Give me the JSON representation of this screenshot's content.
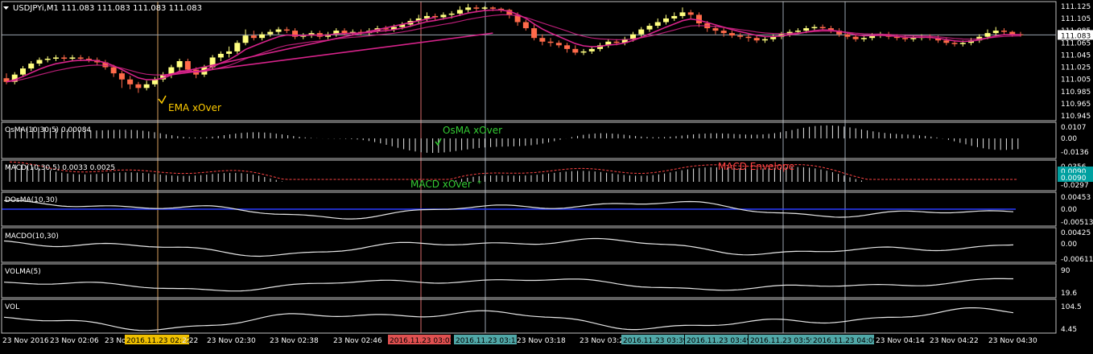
{
  "colors": {
    "background": "#000000",
    "frame": "#c0c0c0",
    "text": "#ffffff",
    "bull": "#ffff80",
    "bear": "#ff6a4a",
    "ema": "#d6238a",
    "xover_ema": "#ffcc00",
    "xover_osma": "#33cc33",
    "envelope": "#ff4444",
    "dosma_zero": "#2a3cff",
    "signal_box": "#00a0a0",
    "vline": "#9aa4b0",
    "vline_red": "#d86a6a",
    "vline_orange": "#d8a060",
    "tag_yellow": "#f0c000",
    "tag_red": "#e05050",
    "tag_teal": "#50a8a8"
  },
  "header": {
    "menu_icon": "triangle-down-icon",
    "title": "USDJPYi,M1  111.083 111.083 111.083 111.083"
  },
  "panels": {
    "price": {
      "ticks": [
        "111.125",
        "111.105",
        "111.085",
        "111.065",
        "111.045",
        "111.025",
        "111.005",
        "110.985",
        "110.965",
        "110.945"
      ],
      "current": "111.083",
      "annotation": "EMA xOver"
    },
    "osma": {
      "label": "OsMA(10,30,5) 0.00084",
      "ticks": [
        "0.0107",
        "0.00",
        "-0.0136"
      ],
      "annotation": "OsMA xOver"
    },
    "macd": {
      "label": "MACD(10,30,5) 0.0033 0.0025",
      "ticks": [
        "0.0356",
        "0.0090",
        "0.0090",
        "-0.0297"
      ],
      "annotation_envelope": "MACD Envelope",
      "annotation_xover": "MACD xOver"
    },
    "dosma": {
      "label": "DOsMA(10,30)",
      "ticks": [
        "0.00453",
        "0.00",
        "-0.00513"
      ]
    },
    "macdo": {
      "label": "MACDO(10,30)",
      "ticks": [
        "0.00425",
        "0.00",
        "-0.00611"
      ]
    },
    "volma": {
      "label": "VOLMA(5)",
      "ticks": [
        "90",
        "19.6"
      ]
    },
    "vol": {
      "label": "VOL",
      "ticks": [
        "104.5",
        "4.45"
      ]
    }
  },
  "time_axis": [
    "23 Nov 2016",
    "23 Nov 02:06",
    "23 Nov",
    "2016.11.23 02:22",
    "2:22",
    "23 Nov 02:30",
    "23 Nov 02:38",
    "23 Nov 02:46",
    "23 Nov 02:54",
    "2016.11.23 03:03",
    "2016.11.23 03:13",
    "23 Nov 03:18",
    "23 Nov 03:26",
    "2016.11.23 03:39",
    "2016.11.23 03:49",
    "2016.11.23 03:59",
    "2016.11.23 04:09",
    "23 Nov 04:14",
    "23 Nov 04:22",
    "23 Nov 04:30"
  ],
  "chart_data": {
    "type": "candlestick",
    "symbol": "USDJPYi",
    "timeframe": "M1",
    "ylim": [
      110.945,
      111.135
    ],
    "candles": [
      [
        111.012,
        111.006,
        111.02,
        111.002
      ],
      [
        111.006,
        111.018,
        111.022,
        111.002
      ],
      [
        111.018,
        111.028,
        111.032,
        111.014
      ],
      [
        111.028,
        111.036,
        111.04,
        111.024
      ],
      [
        111.036,
        111.042,
        111.046,
        111.032
      ],
      [
        111.042,
        111.044,
        111.048,
        111.038
      ],
      [
        111.044,
        111.046,
        111.05,
        111.04
      ],
      [
        111.046,
        111.044,
        111.05,
        111.04
      ],
      [
        111.044,
        111.046,
        111.05,
        111.04
      ],
      [
        111.046,
        111.044,
        111.05,
        111.04
      ],
      [
        111.044,
        111.042,
        111.048,
        111.038
      ],
      [
        111.042,
        111.038,
        111.046,
        111.034
      ],
      [
        111.038,
        111.03,
        111.042,
        111.026
      ],
      [
        111.03,
        111.02,
        111.034,
        111.014
      ],
      [
        111.02,
        111.01,
        111.024,
        110.996
      ],
      [
        111.01,
        111.002,
        111.016,
        110.994
      ],
      [
        111.002,
        110.996,
        111.006,
        110.988
      ],
      [
        110.996,
        111.002,
        111.008,
        110.992
      ],
      [
        111.002,
        111.01,
        111.014,
        110.998
      ],
      [
        111.01,
        111.018,
        111.022,
        111.006
      ],
      [
        111.018,
        111.03,
        111.034,
        111.012
      ],
      [
        111.03,
        111.04,
        111.044,
        111.024
      ],
      [
        111.04,
        111.026,
        111.044,
        111.022
      ],
      [
        111.026,
        111.018,
        111.03,
        111.012
      ],
      [
        111.018,
        111.03,
        111.034,
        111.014
      ],
      [
        111.03,
        111.046,
        111.05,
        111.026
      ],
      [
        111.046,
        111.052,
        111.056,
        111.04
      ],
      [
        111.052,
        111.056,
        111.064,
        111.046
      ],
      [
        111.056,
        111.07,
        111.074,
        111.052
      ],
      [
        111.07,
        111.082,
        111.092,
        111.066
      ],
      [
        111.082,
        111.078,
        111.09,
        111.074
      ],
      [
        111.078,
        111.084,
        111.088,
        111.074
      ],
      [
        111.084,
        111.088,
        111.092,
        111.08
      ],
      [
        111.088,
        111.092,
        111.096,
        111.084
      ],
      [
        111.092,
        111.09,
        111.096,
        111.086
      ],
      [
        111.09,
        111.08,
        111.094,
        111.076
      ],
      [
        111.08,
        111.082,
        111.086,
        111.076
      ],
      [
        111.082,
        111.086,
        111.09,
        111.078
      ],
      [
        111.086,
        111.08,
        111.09,
        111.076
      ],
      [
        111.08,
        111.084,
        111.088,
        111.076
      ],
      [
        111.084,
        111.09,
        111.094,
        111.08
      ],
      [
        111.09,
        111.086,
        111.094,
        111.082
      ],
      [
        111.086,
        111.088,
        111.092,
        111.082
      ],
      [
        111.088,
        111.086,
        111.092,
        111.082
      ],
      [
        111.086,
        111.09,
        111.094,
        111.082
      ],
      [
        111.09,
        111.094,
        111.098,
        111.086
      ],
      [
        111.094,
        111.092,
        111.098,
        111.088
      ],
      [
        111.092,
        111.096,
        111.1,
        111.088
      ],
      [
        111.096,
        111.1,
        111.104,
        111.092
      ],
      [
        111.1,
        111.106,
        111.11,
        111.096
      ],
      [
        111.106,
        111.11,
        111.116,
        111.102
      ],
      [
        111.11,
        111.114,
        111.12,
        111.104
      ],
      [
        111.114,
        111.112,
        111.118,
        111.106
      ],
      [
        111.112,
        111.116,
        111.12,
        111.108
      ],
      [
        111.116,
        111.118,
        111.122,
        111.11
      ],
      [
        111.118,
        111.124,
        111.13,
        111.114
      ],
      [
        111.124,
        111.128,
        111.134,
        111.12
      ],
      [
        111.128,
        111.126,
        111.132,
        111.12
      ],
      [
        111.126,
        111.128,
        111.13,
        111.122
      ],
      [
        111.128,
        111.126,
        111.13,
        111.122
      ],
      [
        111.126,
        111.124,
        111.128,
        111.12
      ],
      [
        111.124,
        111.116,
        111.126,
        111.11
      ],
      [
        111.116,
        111.104,
        111.12,
        111.098
      ],
      [
        111.104,
        111.094,
        111.108,
        111.09
      ],
      [
        111.094,
        111.078,
        111.1,
        111.074
      ],
      [
        111.078,
        111.072,
        111.084,
        111.066
      ],
      [
        111.072,
        111.07,
        111.078,
        111.064
      ],
      [
        111.07,
        111.066,
        111.074,
        111.062
      ],
      [
        111.066,
        111.06,
        111.07,
        111.054
      ],
      [
        111.06,
        111.054,
        111.066,
        111.05
      ],
      [
        111.054,
        111.056,
        111.06,
        111.05
      ],
      [
        111.056,
        111.06,
        111.064,
        111.052
      ],
      [
        111.06,
        111.066,
        111.07,
        111.056
      ],
      [
        111.066,
        111.072,
        111.076,
        111.062
      ],
      [
        111.072,
        111.07,
        111.076,
        111.066
      ],
      [
        111.07,
        111.076,
        111.08,
        111.066
      ],
      [
        111.076,
        111.084,
        111.088,
        111.072
      ],
      [
        111.084,
        111.092,
        111.096,
        111.08
      ],
      [
        111.092,
        111.098,
        111.102,
        111.088
      ],
      [
        111.098,
        111.104,
        111.11,
        111.094
      ],
      [
        111.104,
        111.11,
        111.116,
        111.1
      ],
      [
        111.11,
        111.114,
        111.12,
        111.106
      ],
      [
        111.114,
        111.12,
        111.128,
        111.11
      ],
      [
        111.12,
        111.116,
        111.124,
        111.108
      ],
      [
        111.116,
        111.102,
        111.12,
        111.096
      ],
      [
        111.102,
        111.094,
        111.106,
        111.088
      ],
      [
        111.094,
        111.09,
        111.098,
        111.084
      ],
      [
        111.09,
        111.086,
        111.094,
        111.08
      ],
      [
        111.086,
        111.082,
        111.09,
        111.078
      ],
      [
        111.082,
        111.08,
        111.086,
        111.076
      ],
      [
        111.08,
        111.078,
        111.084,
        111.072
      ],
      [
        111.078,
        111.074,
        111.082,
        111.07
      ],
      [
        111.074,
        111.076,
        111.08,
        111.07
      ],
      [
        111.076,
        111.08,
        111.084,
        111.072
      ],
      [
        111.08,
        111.084,
        111.088,
        111.076
      ],
      [
        111.084,
        111.088,
        111.092,
        111.08
      ],
      [
        111.088,
        111.09,
        111.094,
        111.084
      ],
      [
        111.09,
        111.094,
        111.098,
        111.086
      ],
      [
        111.094,
        111.096,
        111.1,
        111.09
      ],
      [
        111.096,
        111.094,
        111.1,
        111.09
      ],
      [
        111.094,
        111.09,
        111.098,
        111.086
      ],
      [
        111.09,
        111.084,
        111.094,
        111.08
      ],
      [
        111.084,
        111.08,
        111.088,
        111.076
      ],
      [
        111.08,
        111.076,
        111.084,
        111.072
      ],
      [
        111.076,
        111.078,
        111.082,
        111.072
      ],
      [
        111.078,
        111.082,
        111.086,
        111.074
      ],
      [
        111.082,
        111.084,
        111.088,
        111.078
      ],
      [
        111.084,
        111.08,
        111.088,
        111.076
      ],
      [
        111.08,
        111.078,
        111.084,
        111.074
      ],
      [
        111.078,
        111.076,
        111.082,
        111.072
      ],
      [
        111.076,
        111.078,
        111.082,
        111.072
      ],
      [
        111.078,
        111.08,
        111.084,
        111.074
      ],
      [
        111.08,
        111.078,
        111.084,
        111.074
      ],
      [
        111.078,
        111.074,
        111.082,
        111.07
      ],
      [
        111.074,
        111.07,
        111.078,
        111.066
      ],
      [
        111.07,
        111.068,
        111.074,
        111.064
      ],
      [
        111.068,
        111.07,
        111.074,
        111.064
      ],
      [
        111.07,
        111.074,
        111.078,
        111.066
      ],
      [
        111.074,
        111.08,
        111.084,
        111.07
      ],
      [
        111.08,
        111.086,
        111.092,
        111.076
      ],
      [
        111.086,
        111.09,
        111.096,
        111.082
      ],
      [
        111.09,
        111.088,
        111.094,
        111.084
      ],
      [
        111.088,
        111.084,
        111.09,
        111.08
      ],
      [
        111.084,
        111.083,
        111.088,
        111.08
      ]
    ]
  }
}
